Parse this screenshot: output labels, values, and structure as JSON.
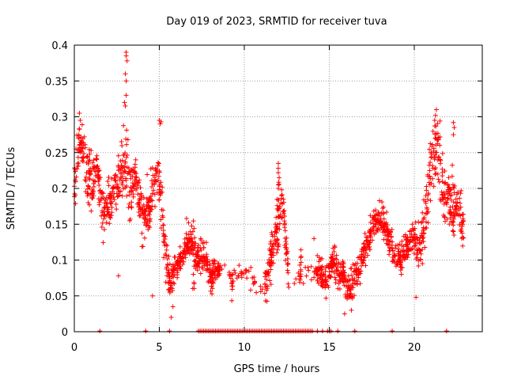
{
  "chart_data": {
    "type": "scatter",
    "title": "Day 019 of 2023, SRMTID for receiver tuva",
    "xlabel": "GPS time / hours",
    "ylabel": "SRMTID / TECUs",
    "xlim": [
      0,
      24
    ],
    "ylim": [
      0,
      0.4
    ],
    "xticks": [
      0,
      5,
      10,
      15,
      20
    ],
    "yticks": [
      0,
      0.05,
      0.1,
      0.15,
      0.2,
      0.25,
      0.3,
      0.35,
      0.4
    ],
    "grid": true,
    "marker": "+",
    "color": "#ff0000",
    "series": [
      {
        "name": "SRMTID",
        "trend": [
          [
            0.0,
            0.2,
            0.04
          ],
          [
            0.3,
            0.27,
            0.02
          ],
          [
            0.6,
            0.24,
            0.03
          ],
          [
            1.0,
            0.2,
            0.04
          ],
          [
            1.3,
            0.24,
            0.02
          ],
          [
            1.7,
            0.16,
            0.03
          ],
          [
            2.0,
            0.18,
            0.03
          ],
          [
            2.4,
            0.2,
            0.03
          ],
          [
            2.8,
            0.22,
            0.04
          ],
          [
            3.0,
            0.25,
            0.06
          ],
          [
            3.3,
            0.19,
            0.04
          ],
          [
            3.6,
            0.22,
            0.02
          ],
          [
            4.0,
            0.16,
            0.04
          ],
          [
            4.4,
            0.17,
            0.04
          ],
          [
            4.7,
            0.22,
            0.03
          ],
          [
            5.0,
            0.2,
            0.04
          ],
          [
            5.3,
            0.12,
            0.04
          ],
          [
            5.6,
            0.07,
            0.02
          ],
          [
            6.0,
            0.09,
            0.02
          ],
          [
            6.4,
            0.11,
            0.02
          ],
          [
            6.8,
            0.13,
            0.02
          ],
          [
            7.2,
            0.1,
            0.02
          ],
          [
            7.6,
            0.11,
            0.02
          ],
          [
            8.0,
            0.08,
            0.02
          ],
          [
            8.6,
            0.09,
            0.01
          ],
          [
            9.5,
            0.07,
            0.02
          ],
          [
            10.0,
            0.09,
            0.01
          ],
          [
            10.5,
            0.07,
            0.02
          ],
          [
            11.2,
            0.06,
            0.02
          ],
          [
            11.8,
            0.13,
            0.04
          ],
          [
            12.2,
            0.19,
            0.03
          ],
          [
            12.6,
            0.08,
            0.02
          ],
          [
            13.5,
            0.08,
            0.01
          ],
          [
            14.2,
            0.09,
            0.02
          ],
          [
            14.8,
            0.07,
            0.02
          ],
          [
            15.2,
            0.1,
            0.02
          ],
          [
            15.5,
            0.08,
            0.02
          ],
          [
            15.8,
            0.08,
            0.02
          ],
          [
            16.2,
            0.06,
            0.02
          ],
          [
            16.5,
            0.07,
            0.02
          ],
          [
            16.8,
            0.09,
            0.02
          ],
          [
            17.2,
            0.12,
            0.02
          ],
          [
            17.6,
            0.15,
            0.02
          ],
          [
            18.0,
            0.16,
            0.02
          ],
          [
            18.4,
            0.14,
            0.02
          ],
          [
            18.8,
            0.11,
            0.02
          ],
          [
            19.2,
            0.1,
            0.02
          ],
          [
            19.6,
            0.12,
            0.02
          ],
          [
            20.0,
            0.13,
            0.02
          ],
          [
            20.4,
            0.12,
            0.03
          ],
          [
            20.8,
            0.19,
            0.04
          ],
          [
            21.0,
            0.24,
            0.04
          ],
          [
            21.4,
            0.26,
            0.04
          ],
          [
            21.8,
            0.19,
            0.04
          ],
          [
            22.2,
            0.18,
            0.04
          ],
          [
            22.6,
            0.17,
            0.03
          ],
          [
            22.9,
            0.15,
            0.03
          ]
        ],
        "zero_points": [
          1.5,
          4.2,
          5.6,
          7.3,
          7.4,
          7.5,
          7.6,
          7.7,
          7.8,
          7.9,
          8.0,
          8.1,
          8.2,
          8.3,
          8.4,
          8.5,
          8.6,
          8.7,
          8.8,
          8.9,
          9.0,
          9.1,
          9.2,
          9.3,
          9.4,
          9.5,
          9.6,
          9.7,
          9.8,
          9.9,
          10.0,
          10.1,
          10.2,
          10.3,
          10.4,
          10.5,
          10.6,
          10.7,
          10.8,
          10.9,
          11.0,
          11.1,
          11.2,
          11.3,
          11.4,
          11.5,
          11.6,
          11.7,
          11.8,
          11.9,
          12.0,
          12.1,
          12.2,
          12.3,
          12.4,
          12.5,
          12.6,
          12.7,
          12.8,
          12.9,
          13.0,
          13.1,
          13.2,
          13.3,
          13.4,
          13.5,
          13.6,
          13.7,
          13.8,
          13.9,
          14.0,
          14.3,
          14.6,
          14.9,
          15.0,
          15.1,
          15.5,
          16.5,
          18.7,
          21.9
        ],
        "spikes": [
          [
            3.05,
            0.39
          ],
          [
            3.05,
            0.385
          ],
          [
            3.1,
            0.378
          ],
          [
            3.0,
            0.36
          ],
          [
            3.05,
            0.35
          ],
          [
            3.05,
            0.33
          ],
          [
            3.0,
            0.315
          ],
          [
            2.95,
            0.32
          ],
          [
            0.3,
            0.305
          ],
          [
            0.35,
            0.295
          ],
          [
            12.0,
            0.235
          ],
          [
            12.0,
            0.228
          ],
          [
            12.0,
            0.222
          ],
          [
            12.05,
            0.215
          ],
          [
            12.0,
            0.205
          ],
          [
            12.0,
            0.2
          ],
          [
            21.3,
            0.31
          ],
          [
            21.25,
            0.302
          ],
          [
            21.2,
            0.295
          ],
          [
            22.3,
            0.292
          ],
          [
            22.35,
            0.285
          ],
          [
            22.3,
            0.275
          ],
          [
            5.0,
            0.295
          ],
          [
            5.1,
            0.293
          ],
          [
            5.05,
            0.29
          ],
          [
            2.6,
            0.078
          ],
          [
            5.7,
            0.02
          ],
          [
            5.8,
            0.035
          ],
          [
            15.9,
            0.025
          ],
          [
            16.3,
            0.03
          ],
          [
            4.6,
            0.05
          ],
          [
            0.1,
            0.255
          ],
          [
            20.1,
            0.048
          ],
          [
            6.6,
            0.158
          ],
          [
            14.1,
            0.13
          ]
        ]
      }
    ]
  }
}
